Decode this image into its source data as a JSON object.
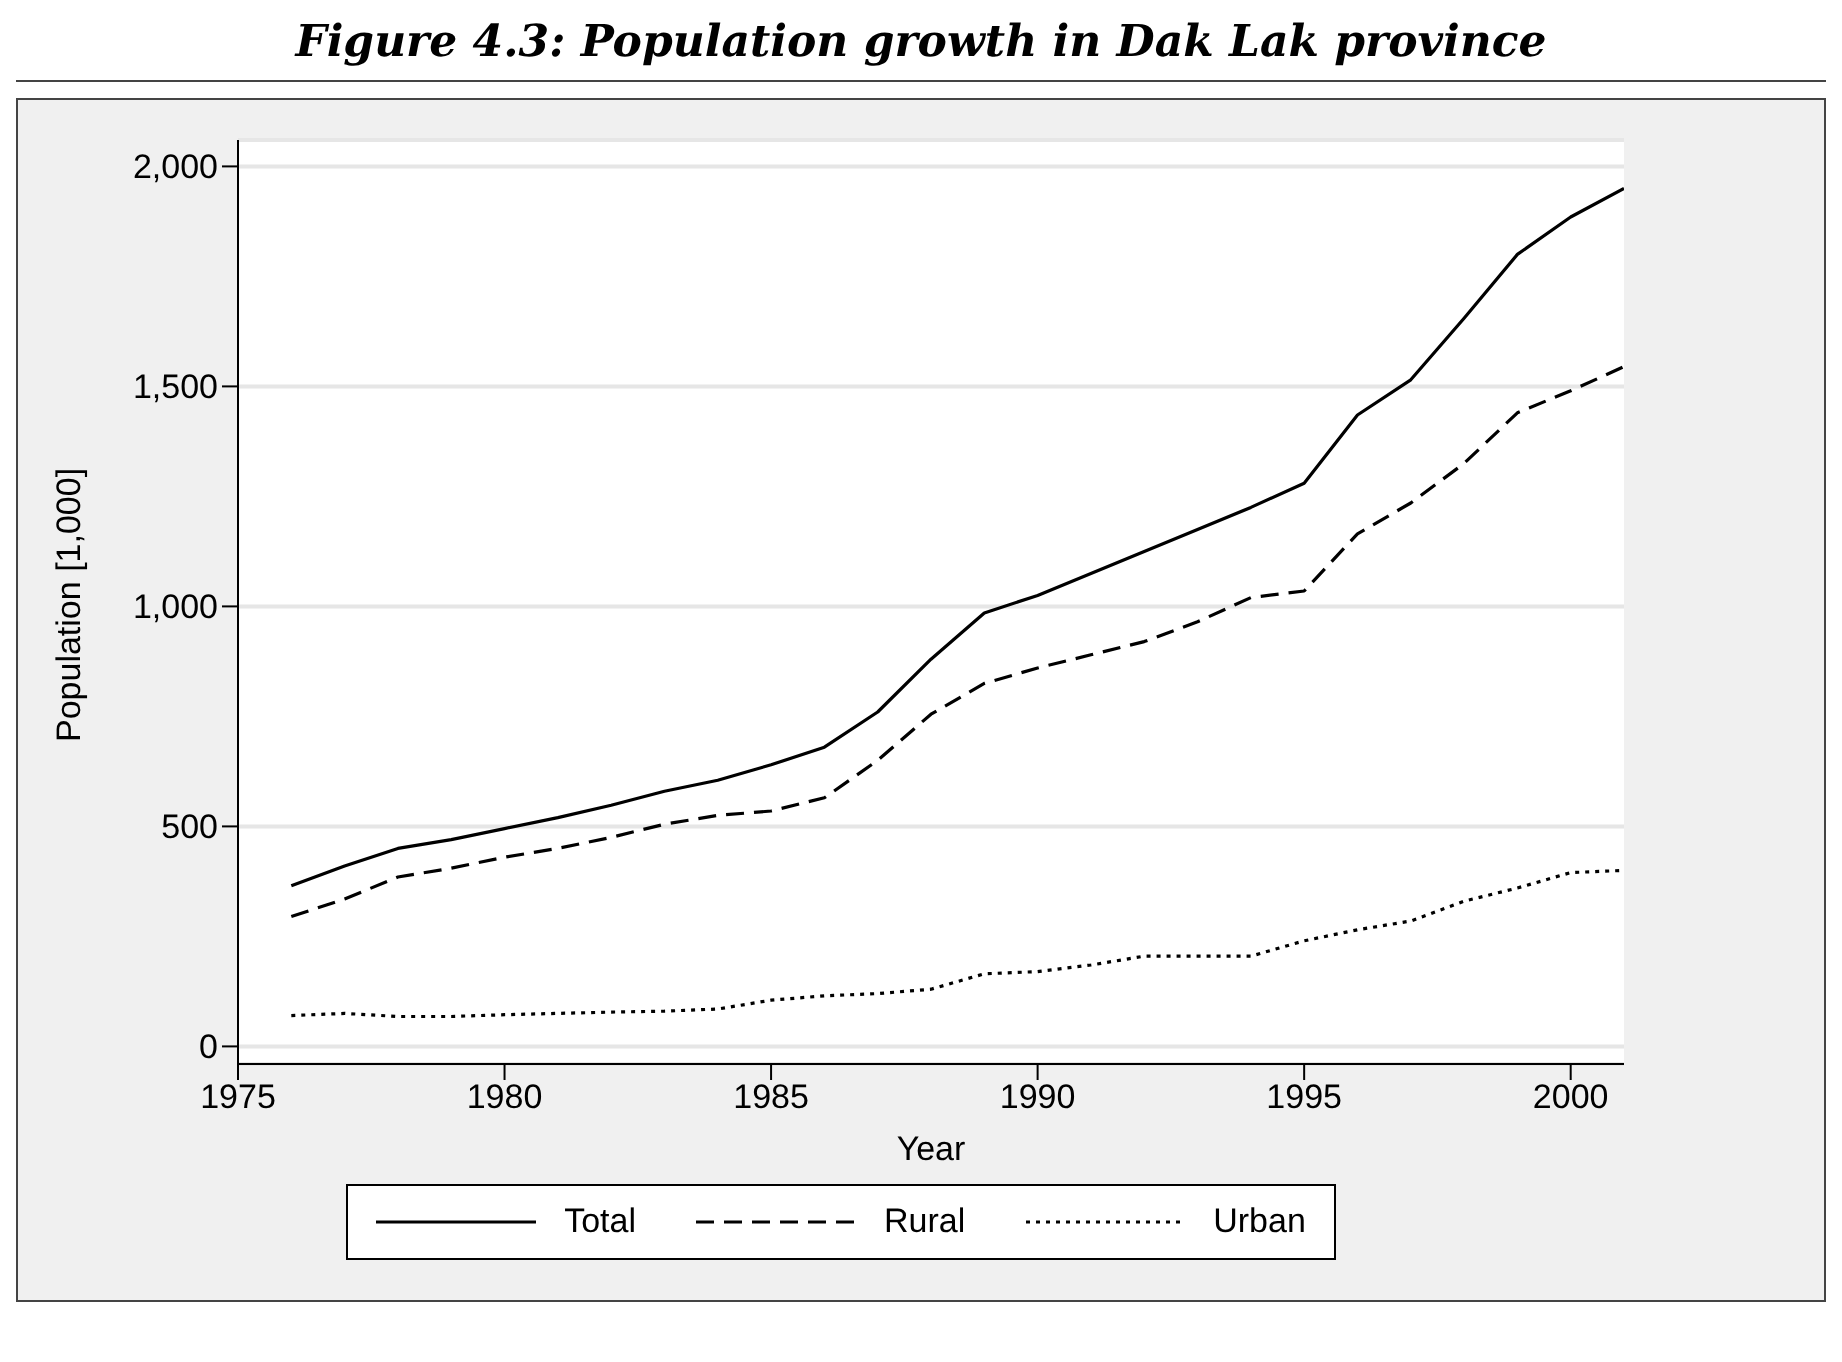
{
  "chart_data": {
    "type": "line",
    "title": "Figure 4.3: Population growth in Dak Lak province",
    "xlabel": "Year",
    "ylabel": "Population [1,000]",
    "x": [
      1976,
      1977,
      1978,
      1979,
      1980,
      1981,
      1982,
      1983,
      1984,
      1985,
      1986,
      1987,
      1988,
      1989,
      1990,
      1991,
      1992,
      1993,
      1994,
      1995,
      1996,
      1997,
      1998,
      1999,
      2000,
      2001
    ],
    "series": [
      {
        "name": "Total",
        "color": "#000000",
        "line_style": "solid",
        "values": [
          365,
          410,
          450,
          470,
          495,
          520,
          548,
          580,
          605,
          640,
          680,
          760,
          880,
          985,
          1025,
          1075,
          1125,
          1175,
          1225,
          1280,
          1435,
          1515,
          1655,
          1800,
          1885,
          1950
        ]
      },
      {
        "name": "Rural",
        "color": "#000000",
        "line_style": "dashed",
        "values": [
          295,
          335,
          385,
          405,
          430,
          450,
          475,
          505,
          525,
          535,
          565,
          650,
          755,
          825,
          860,
          890,
          920,
          965,
          1020,
          1035,
          1165,
          1235,
          1325,
          1440,
          1490,
          1545
        ]
      },
      {
        "name": "Urban",
        "color": "#000000",
        "line_style": "dotted",
        "values": [
          70,
          75,
          68,
          68,
          72,
          75,
          78,
          80,
          85,
          105,
          115,
          120,
          130,
          165,
          170,
          185,
          205,
          205,
          205,
          240,
          265,
          285,
          330,
          360,
          395,
          400
        ]
      }
    ],
    "xlim": [
      1975,
      2001
    ],
    "xticks": [
      1975,
      1980,
      1985,
      1990,
      1995,
      2000
    ],
    "ylim": [
      -40,
      2060
    ],
    "yticks": [
      {
        "value": 0,
        "label": "0"
      },
      {
        "value": 500,
        "label": "500"
      },
      {
        "value": 1000,
        "label": "1,000"
      },
      {
        "value": 1500,
        "label": "1,500"
      },
      {
        "value": 2000,
        "label": "2,000"
      }
    ],
    "grid": "y",
    "legend": "bottom",
    "marker": "none"
  }
}
